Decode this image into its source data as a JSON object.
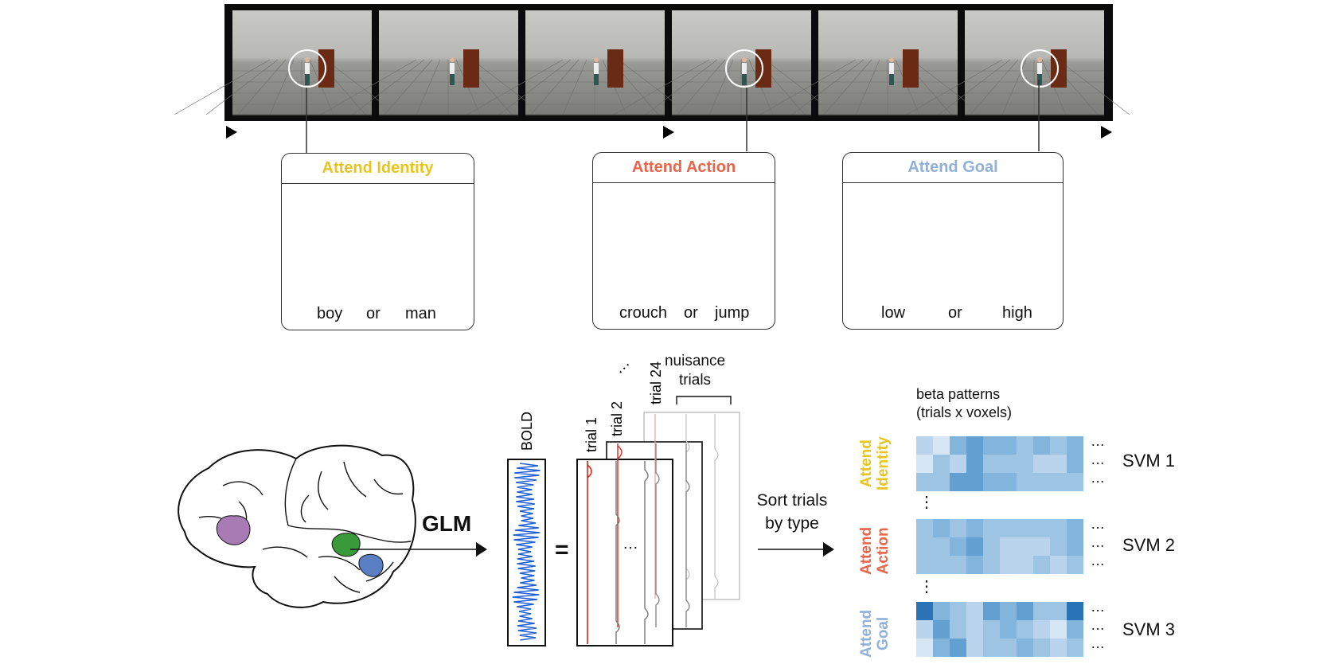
{
  "panels": [
    {
      "title": "Attend Identity",
      "color": "#e8c51e",
      "left_word": "boy",
      "mid_word": "or",
      "right_word": "man"
    },
    {
      "title": "Attend Action",
      "color": "#e8644a",
      "left_word": "crouch",
      "mid_word": "or",
      "right_word": "jump"
    },
    {
      "title": "Attend Goal",
      "color": "#8fb0d8",
      "left_word": "low",
      "mid_word": "or",
      "right_word": "high"
    }
  ],
  "glm": {
    "label": "GLM",
    "bold_label": "BOLD",
    "equals": "=",
    "trial_labels": [
      "trial 1",
      "trial 2",
      "trial 24"
    ],
    "dots": "…",
    "nuisance_label": "nuisance\ntrials",
    "sort_label": "Sort trials\nby type"
  },
  "beta": {
    "title": "beta patterns\n(trials x voxels)",
    "conditions": [
      {
        "label": "Attend\nIdentity",
        "color": "#e8c51e",
        "svm": "SVM 1"
      },
      {
        "label": "Attend\nAction",
        "color": "#e8644a",
        "svm": "SVM 2"
      },
      {
        "label": "Attend\nGoal",
        "color": "#8fb0d8",
        "svm": "SVM 3"
      }
    ],
    "row_dots": "…",
    "between_dots": "⋮"
  },
  "colors": {
    "bold_trace": "#1f5fd6",
    "trial_red": "#d62a1a",
    "purple_region": "#a87bb5",
    "green_region": "#3a9a3a",
    "blue_region": "#5b7fc4"
  }
}
